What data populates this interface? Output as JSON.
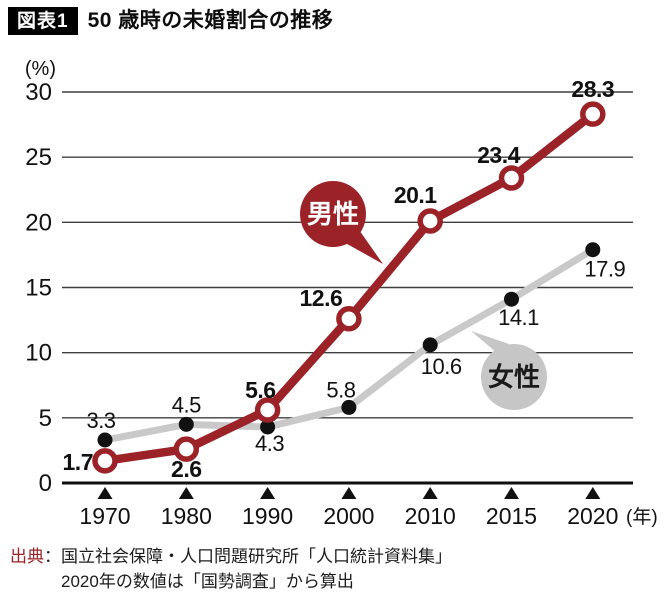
{
  "header": {
    "badge": "図表1",
    "title": "50 歳時の未婚割合の推移"
  },
  "chart_data": {
    "type": "line",
    "title": "50歳時の未婚割合の推移",
    "x": [
      1970,
      1980,
      1990,
      2000,
      2010,
      2015,
      2020
    ],
    "x_tick_labels": [
      "1970",
      "1980",
      "1990",
      "2000",
      "2010",
      "2015",
      "2020"
    ],
    "x_unit": "(年)",
    "y_unit": "(%)",
    "y_ticks": [
      0,
      5,
      10,
      15,
      20,
      25,
      30
    ],
    "ylim": [
      0,
      30
    ],
    "grid": "horizontal-only",
    "legend": "inline-bubble-callouts",
    "series": [
      {
        "key": "male",
        "name": "男性",
        "values": [
          1.7,
          2.6,
          5.6,
          12.6,
          20.1,
          23.4,
          28.3
        ],
        "labels": [
          "1.7",
          "2.6",
          "5.6",
          "12.6",
          "20.1",
          "23.4",
          "28.3"
        ],
        "color": "#9b2328",
        "marker": "open-circle",
        "line_width": 8.5,
        "label_bold": true,
        "label_font_size": 23,
        "label_offsets": [
          [
            -12,
            9,
            "end"
          ],
          [
            0,
            28,
            "middle"
          ],
          [
            8,
            -12,
            "end"
          ],
          [
            -28,
            -13,
            "middle"
          ],
          [
            -15,
            -18,
            "middle"
          ],
          [
            -13,
            -15,
            "middle"
          ],
          [
            0,
            -17,
            "middle"
          ]
        ]
      },
      {
        "key": "female",
        "name": "女性",
        "values": [
          3.3,
          4.5,
          4.3,
          5.8,
          10.6,
          14.1,
          17.9
        ],
        "labels": [
          "3.3",
          "4.5",
          "4.3",
          "5.8",
          "10.6",
          "14.1",
          "17.9"
        ],
        "color": "#c9c9c9",
        "marker": "filled-dot",
        "marker_color": "#111111",
        "line_width": 7,
        "label_bold": false,
        "label_font_size": 22,
        "label_offsets": [
          [
            -4,
            -12,
            "middle"
          ],
          [
            0,
            -12,
            "middle"
          ],
          [
            2,
            24,
            "middle"
          ],
          [
            -8,
            -10,
            "middle"
          ],
          [
            11,
            29,
            "middle"
          ],
          [
            7,
            26,
            "middle"
          ],
          [
            12,
            27,
            "middle"
          ]
        ]
      }
    ],
    "annotations": [
      {
        "key": "male",
        "text": "男性",
        "bubble_fill": "#9b2328",
        "text_color": "#ffffff",
        "geom": {
          "cx": 333,
          "cy": 214,
          "r": 33,
          "fs": 26,
          "dy": 9,
          "tail": [
            [
              340,
              240
            ],
            [
              383,
              264
            ],
            [
              357,
              227
            ]
          ]
        }
      },
      {
        "key": "female",
        "text": "女性",
        "bubble_fill": "#c6c6c6",
        "text_color": "#1a1a1a",
        "geom": {
          "cx": 514,
          "cy": 377,
          "r": 33,
          "fs": 26,
          "dy": 9,
          "tail": [
            [
              497,
              353
            ],
            [
              471,
              331
            ],
            [
              509,
              344
            ]
          ]
        }
      }
    ],
    "layout": {
      "x0": 105,
      "xstep": 81.3,
      "y0": 483,
      "yscale": 13.033,
      "grid_x1": 62,
      "grid_x2": 633,
      "tick_label_x": 52
    }
  },
  "source": {
    "prefix": "出典",
    "line1": "：国立社会保障・人口問題研究所「人口統計資料集」",
    "line2": "2020年の数値は「国勢調査」から算出"
  },
  "colors": {
    "accent_red": "#9b2328",
    "female_gray": "#c9c9c9",
    "grid": "#3f3f3f",
    "axis": "#0f0f0f",
    "text": "#111111"
  }
}
